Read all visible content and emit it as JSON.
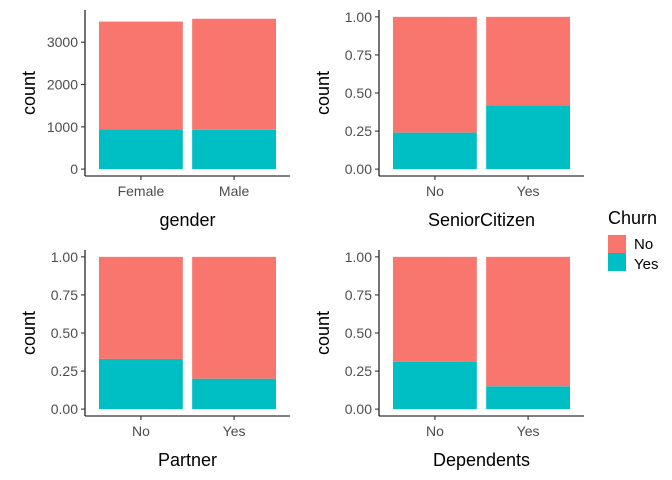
{
  "colors": {
    "No": "#F8766D",
    "Yes": "#00BFC4"
  },
  "legend": {
    "title": "Churn",
    "items": [
      "No",
      "Yes"
    ],
    "placement": "right"
  },
  "chart_data": [
    {
      "type": "bar",
      "stacked": true,
      "xlabel": "gender",
      "ylabel": "count",
      "categories": [
        "Female",
        "Male"
      ],
      "ylim": [
        0,
        3600
      ],
      "yticks": [
        0,
        1000,
        2000,
        3000
      ],
      "ytick_labels": [
        "0",
        "1000",
        "2000",
        "3000"
      ],
      "series": [
        {
          "name": "No",
          "values": [
            2549,
            2625
          ]
        },
        {
          "name": "Yes",
          "values": [
            939,
            930
          ]
        }
      ]
    },
    {
      "type": "bar",
      "stacked": true,
      "xlabel": "SeniorCitizen",
      "ylabel": "count",
      "categories": [
        "No",
        "Yes"
      ],
      "ylim": [
        0,
        1
      ],
      "yticks": [
        0,
        0.25,
        0.5,
        0.75,
        1
      ],
      "ytick_labels": [
        "0.00",
        "0.25",
        "0.50",
        "0.75",
        "1.00"
      ],
      "series": [
        {
          "name": "No",
          "values": [
            0.76,
            0.58
          ]
        },
        {
          "name": "Yes",
          "values": [
            0.24,
            0.42
          ]
        }
      ]
    },
    {
      "type": "bar",
      "stacked": true,
      "xlabel": "Partner",
      "ylabel": "count",
      "categories": [
        "No",
        "Yes"
      ],
      "ylim": [
        0,
        1
      ],
      "yticks": [
        0,
        0.25,
        0.5,
        0.75,
        1
      ],
      "ytick_labels": [
        "0.00",
        "0.25",
        "0.50",
        "0.75",
        "1.00"
      ],
      "series": [
        {
          "name": "No",
          "values": [
            0.67,
            0.8
          ]
        },
        {
          "name": "Yes",
          "values": [
            0.33,
            0.2
          ]
        }
      ]
    },
    {
      "type": "bar",
      "stacked": true,
      "xlabel": "Dependents",
      "ylabel": "count",
      "categories": [
        "No",
        "Yes"
      ],
      "ylim": [
        0,
        1
      ],
      "yticks": [
        0,
        0.25,
        0.5,
        0.75,
        1
      ],
      "ytick_labels": [
        "0.00",
        "0.25",
        "0.50",
        "0.75",
        "1.00"
      ],
      "series": [
        {
          "name": "No",
          "values": [
            0.69,
            0.85
          ]
        },
        {
          "name": "Yes",
          "values": [
            0.31,
            0.15
          ]
        }
      ]
    }
  ]
}
